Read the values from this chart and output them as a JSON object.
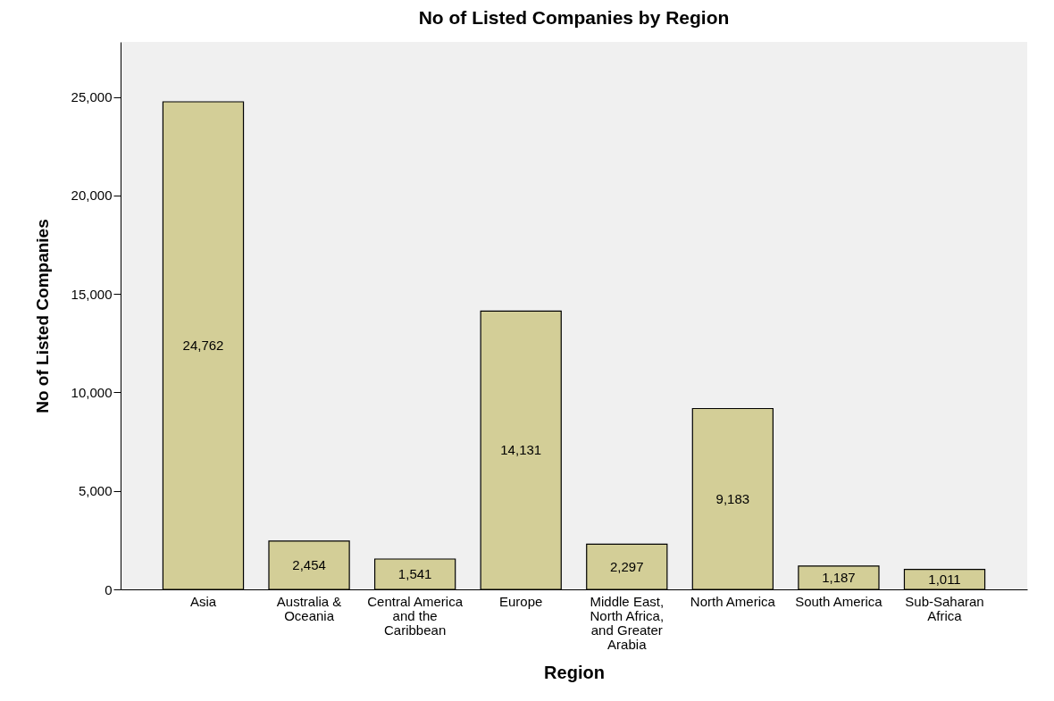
{
  "chart_data": {
    "type": "bar",
    "title": "No of Listed Companies by Region",
    "xlabel": "Region",
    "ylabel": "No of Listed Companies",
    "categories": [
      "Asia",
      "Australia & Oceania",
      "Central America and the Caribbean",
      "Europe",
      "Middle East, North Africa, and Greater Arabia",
      "North America",
      "South America",
      "Sub-Saharan Africa"
    ],
    "values": [
      24762,
      2454,
      1541,
      14131,
      2297,
      9183,
      1187,
      1011
    ],
    "color": "#d3ce97",
    "ylim": [
      0,
      27800
    ],
    "yticks": [
      {
        "value": 0,
        "label": "0"
      },
      {
        "value": 5000,
        "label": "5,000"
      },
      {
        "value": 10000,
        "label": "10,000"
      },
      {
        "value": 15000,
        "label": "15,000"
      },
      {
        "value": 20000,
        "label": "20,000"
      },
      {
        "value": 25000,
        "label": "25,000"
      }
    ],
    "grid": false,
    "value_labels": [
      "24,762",
      "2,454",
      "1,541",
      "14,131",
      "2,297",
      "9,183",
      "1,187",
      "1,011"
    ]
  }
}
